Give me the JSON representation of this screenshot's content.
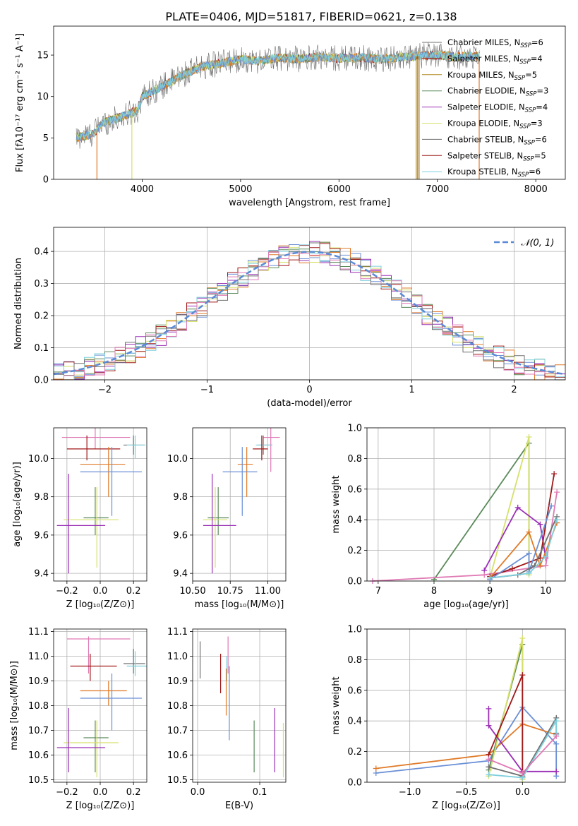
{
  "figure_title": "PLATE=0406, MJD=51817, FIBERID=0621, z=0.138",
  "colors": {
    "Chabrier MILES": "#6a8fd6",
    "Salpeter MILES": "#e07a28",
    "Kroupa MILES": "#b08a20",
    "Chabrier ELODIE": "#5a8a5a",
    "Salpeter ELODIE": "#9a2fb5",
    "Kroupa ELODIE": "#d6e06a",
    "Chabrier STELIB": "#707070",
    "Salpeter STELIB": "#a01818",
    "Kroupa STELIB": "#7ecfdc",
    "pink": "#e07ab5",
    "gaussian": "#5b8ad6"
  },
  "chart_data": [
    {
      "id": "spectrum",
      "type": "line",
      "xlabel": "wavelength [Angstrom, rest frame]",
      "ylabel": "Flux [fλ10⁻¹⁷ erg cm⁻² s⁻¹ A⁻¹]",
      "xlim": [
        3100,
        8300
      ],
      "ylim": [
        0,
        18.5
      ],
      "xticks": [
        "4000",
        "5000",
        "6000",
        "7000",
        "8000"
      ],
      "yticks": [
        "0",
        "5",
        "10",
        "15"
      ],
      "legend_position": "top-right",
      "legend": [
        {
          "base": "Chabrier MILES, N",
          "sub": "SSP",
          "tail": "=6",
          "color_key": "Chabrier STELIB"
        },
        {
          "base": "Salpeter MILES, N",
          "sub": "SSP",
          "tail": "=4",
          "color_key": "Salpeter STELIB"
        },
        {
          "base": "Kroupa MILES, N",
          "sub": "SSP",
          "tail": "=5",
          "color_key": "Kroupa MILES"
        },
        {
          "base": "Chabrier ELODIE, N",
          "sub": "SSP",
          "tail": "=3",
          "color_key": "Chabrier ELODIE"
        },
        {
          "base": "Salpeter ELODIE, N",
          "sub": "SSP",
          "tail": "=4",
          "color_key": "Salpeter ELODIE"
        },
        {
          "base": "Kroupa ELODIE, N",
          "sub": "SSP",
          "tail": "=3",
          "color_key": "Kroupa ELODIE"
        },
        {
          "base": "Chabrier STELIB, N",
          "sub": "SSP",
          "tail": "=6",
          "color_key": "Chabrier STELIB"
        },
        {
          "base": "Salpeter STELIB, N",
          "sub": "SSP",
          "tail": "=5",
          "color_key": "Salpeter STELIB"
        },
        {
          "base": "Kroupa STELIB, N",
          "sub": "SSP",
          "tail": "=6",
          "color_key": "Kroupa STELIB"
        }
      ],
      "continuum": [
        [
          3330,
          5.0
        ],
        [
          3500,
          5.5
        ],
        [
          3600,
          6.8
        ],
        [
          3800,
          7.6
        ],
        [
          3950,
          8.3
        ],
        [
          4000,
          10.0
        ],
        [
          4200,
          11.2
        ],
        [
          4400,
          12.5
        ],
        [
          4600,
          13.6
        ],
        [
          4800,
          14.0
        ],
        [
          5000,
          14.5
        ],
        [
          5200,
          14.3
        ],
        [
          5400,
          14.7
        ],
        [
          5600,
          14.5
        ],
        [
          5800,
          14.8
        ],
        [
          6000,
          14.6
        ],
        [
          6200,
          14.7
        ],
        [
          6400,
          14.5
        ],
        [
          6600,
          14.7
        ],
        [
          6800,
          14.9
        ],
        [
          7000,
          15.0
        ],
        [
          7200,
          14.8
        ],
        [
          7400,
          14.9
        ]
      ],
      "data_extent": [
        3330,
        7430
      ],
      "dips": [
        {
          "x": 3540,
          "to": 0,
          "color_key": "Salpeter MILES"
        },
        {
          "x": 3895,
          "to": 0,
          "color_key": "Kroupa ELODIE"
        },
        {
          "x": 6785,
          "to": 0,
          "color_key": "Kroupa MILES"
        },
        {
          "x": 6800,
          "to": 0,
          "color_key": "Chabrier ELODIE"
        },
        {
          "x": 6815,
          "to": 0,
          "color_key": "Salpeter MILES"
        },
        {
          "x": 7425,
          "to": 0,
          "color_key": "Salpeter MILES"
        }
      ]
    },
    {
      "id": "residuals",
      "type": "histogram",
      "xlabel": "(data-model)/error",
      "ylabel": "Normed distribution",
      "xlim": [
        -2.5,
        2.5
      ],
      "ylim": [
        0,
        0.475
      ],
      "xticks": [
        "−2",
        "−1",
        "0",
        "1",
        "2"
      ],
      "yticks": [
        "0.0",
        "0.1",
        "0.2",
        "0.3",
        "0.4"
      ],
      "legend_position": "top-right",
      "gaussian_label": "𝒩(0, 1)"
    },
    {
      "id": "age_vs_Z",
      "type": "scatter",
      "xlabel": "Z [log₁₀(Z/Z⊙)]",
      "ylabel": "age  [log₁₀(age/yr)]",
      "xlim": [
        -0.28,
        0.28
      ],
      "ylim": [
        9.36,
        10.16
      ],
      "xticks": [
        "−0.2",
        "0.0",
        "0.2"
      ],
      "yticks": [
        "9.4",
        "9.6",
        "9.8",
        "10.0"
      ],
      "points": [
        {
          "c": "pink",
          "x": -0.03,
          "y": 10.11,
          "xl": -0.23,
          "xh": 0.18,
          "yl": 10.05,
          "yh": 10.16
        },
        {
          "c": "Chabrier STELIB",
          "x": 0.2,
          "y": 10.07,
          "xl": 0.14,
          "xh": 0.27,
          "yl": 10.02,
          "yh": 10.12
        },
        {
          "c": "Kroupa STELIB",
          "x": 0.21,
          "y": 10.07,
          "xl": 0.16,
          "xh": 0.27,
          "yl": 10.0,
          "yh": 10.12
        },
        {
          "c": "Salpeter STELIB",
          "x": -0.08,
          "y": 10.05,
          "xl": -0.2,
          "xh": 0.12,
          "yl": 9.99,
          "yh": 10.12
        },
        {
          "c": "Salpeter MILES",
          "x": 0.05,
          "y": 9.97,
          "xl": -0.12,
          "xh": 0.15,
          "yl": 9.8,
          "yh": 10.06
        },
        {
          "c": "Chabrier MILES",
          "x": 0.07,
          "y": 9.93,
          "xl": -0.12,
          "xh": 0.25,
          "yl": 9.7,
          "yh": 10.06
        },
        {
          "c": "Chabrier ELODIE",
          "x": -0.03,
          "y": 9.69,
          "xl": -0.1,
          "xh": 0.05,
          "yl": 9.6,
          "yh": 9.85
        },
        {
          "c": "Kroupa ELODIE",
          "x": -0.02,
          "y": 9.68,
          "xl": -0.22,
          "xh": 0.11,
          "yl": 9.43,
          "yh": 9.85
        },
        {
          "c": "Salpeter ELODIE",
          "x": -0.19,
          "y": 9.65,
          "xl": -0.26,
          "xh": 0.03,
          "yl": 9.4,
          "yh": 9.92
        }
      ]
    },
    {
      "id": "age_vs_mass",
      "type": "scatter",
      "xlabel": "mass [log₁₀(M/M⊙)]",
      "ylabel": "",
      "xlim": [
        10.5,
        11.12
      ],
      "ylim": [
        9.36,
        10.16
      ],
      "xticks": [
        "10.50",
        "10.75",
        "11.00"
      ],
      "yticks": [
        "9.4",
        "9.6",
        "9.8",
        "10.0"
      ],
      "points": [
        {
          "c": "pink",
          "x": 11.02,
          "y": 10.11,
          "xl": 10.97,
          "xh": 11.08,
          "yl": 9.93,
          "yh": 10.16
        },
        {
          "c": "Chabrier STELIB",
          "x": 10.97,
          "y": 10.07,
          "xl": 10.93,
          "xh": 11.03,
          "yl": 10.02,
          "yh": 10.12
        },
        {
          "c": "Kroupa STELIB",
          "x": 10.96,
          "y": 10.07,
          "xl": 10.92,
          "xh": 11.03,
          "yl": 10.0,
          "yh": 10.12
        },
        {
          "c": "Salpeter STELIB",
          "x": 10.96,
          "y": 10.05,
          "xl": 10.9,
          "xh": 11.0,
          "yl": 9.99,
          "yh": 10.12
        },
        {
          "c": "Salpeter MILES",
          "x": 10.86,
          "y": 9.97,
          "xl": 10.8,
          "xh": 10.9,
          "yl": 9.8,
          "yh": 10.06
        },
        {
          "c": "Chabrier MILES",
          "x": 10.83,
          "y": 9.93,
          "xl": 10.7,
          "xh": 10.93,
          "yl": 9.7,
          "yh": 10.06
        },
        {
          "c": "Chabrier ELODIE",
          "x": 10.67,
          "y": 9.69,
          "xl": 10.6,
          "xh": 10.74,
          "yl": 9.6,
          "yh": 9.85
        },
        {
          "c": "Kroupa ELODIE",
          "x": 10.65,
          "y": 9.68,
          "xl": 10.57,
          "xh": 10.73,
          "yl": 9.43,
          "yh": 9.85
        },
        {
          "c": "Salpeter ELODIE",
          "x": 10.63,
          "y": 9.65,
          "xl": 10.57,
          "xh": 10.79,
          "yl": 9.4,
          "yh": 9.92
        }
      ]
    },
    {
      "id": "mass_weight_vs_age",
      "type": "line",
      "xlabel": "age  [log₁₀(age/yr)]",
      "ylabel": "mass weight",
      "xlim": [
        6.8,
        10.35
      ],
      "ylim": [
        0,
        1.0
      ],
      "xticks": [
        "7",
        "8",
        "9",
        "10"
      ],
      "yticks": [
        "0.0",
        "0.2",
        "0.4",
        "0.6",
        "0.8",
        "1.0"
      ],
      "series": [
        {
          "c": "Chabrier ELODIE",
          "points": [
            [
              8.0,
              0.01
            ],
            [
              9.7,
              0.9
            ],
            [
              9.7,
              0.08
            ]
          ]
        },
        {
          "c": "Kroupa ELODIE",
          "points": [
            [
              9.0,
              0.02
            ],
            [
              9.7,
              0.94
            ],
            [
              9.7,
              0.04
            ]
          ]
        },
        {
          "c": "Salpeter ELODIE",
          "points": [
            [
              8.9,
              0.07
            ],
            [
              9.5,
              0.48
            ],
            [
              9.9,
              0.37
            ],
            [
              10.0,
              0.15
            ]
          ]
        },
        {
          "c": "pink",
          "points": [
            [
              6.9,
              0.0
            ],
            [
              8.9,
              0.04
            ],
            [
              10.0,
              0.1
            ],
            [
              10.2,
              0.58
            ]
          ]
        },
        {
          "c": "Salpeter STELIB",
          "points": [
            [
              9.0,
              0.03
            ],
            [
              9.4,
              0.08
            ],
            [
              9.9,
              0.15
            ],
            [
              10.15,
              0.7
            ]
          ]
        },
        {
          "c": "Salpeter MILES",
          "points": [
            [
              9.0,
              0.02
            ],
            [
              9.7,
              0.32
            ],
            [
              9.9,
              0.1
            ],
            [
              10.2,
              0.38
            ]
          ]
        },
        {
          "c": "Chabrier MILES",
          "points": [
            [
              9.0,
              0.01
            ],
            [
              9.7,
              0.18
            ],
            [
              9.7,
              0.06
            ],
            [
              10.1,
              0.49
            ]
          ]
        },
        {
          "c": "Chabrier STELIB",
          "points": [
            [
              9.0,
              0.02
            ],
            [
              9.5,
              0.04
            ],
            [
              9.8,
              0.1
            ],
            [
              10.2,
              0.42
            ]
          ]
        },
        {
          "c": "Kroupa STELIB",
          "points": [
            [
              9.0,
              0.02
            ],
            [
              9.7,
              0.05
            ],
            [
              10.0,
              0.16
            ],
            [
              10.2,
              0.4
            ]
          ]
        }
      ]
    },
    {
      "id": "mass_vs_Z",
      "type": "scatter",
      "xlabel": "Z [log₁₀(Z/Z⊙)]",
      "ylabel": "mass [log₁₀(M/M⊙)]",
      "xlim": [
        -0.28,
        0.28
      ],
      "ylim": [
        10.49,
        11.11
      ],
      "xticks": [
        "−0.2",
        "0.0",
        "0.2"
      ],
      "yticks": [
        "10.5",
        "10.6",
        "10.7",
        "10.8",
        "10.9",
        "11.0",
        "11.1"
      ],
      "points": [
        {
          "c": "pink",
          "x": -0.07,
          "y": 11.07,
          "xl": -0.2,
          "xh": 0.18,
          "yl": 10.93,
          "yh": 11.08
        },
        {
          "c": "Chabrier STELIB",
          "x": 0.2,
          "y": 10.97,
          "xl": 0.14,
          "xh": 0.27,
          "yl": 10.93,
          "yh": 11.03
        },
        {
          "c": "Kroupa STELIB",
          "x": 0.21,
          "y": 10.96,
          "xl": 0.16,
          "xh": 0.28,
          "yl": 10.92,
          "yh": 11.02
        },
        {
          "c": "Salpeter STELIB",
          "x": -0.06,
          "y": 10.96,
          "xl": -0.18,
          "xh": 0.1,
          "yl": 10.9,
          "yh": 11.01
        },
        {
          "c": "Salpeter MILES",
          "x": 0.05,
          "y": 10.86,
          "xl": -0.12,
          "xh": 0.16,
          "yl": 10.8,
          "yh": 10.9
        },
        {
          "c": "Chabrier MILES",
          "x": 0.07,
          "y": 10.83,
          "xl": -0.12,
          "xh": 0.25,
          "yl": 10.7,
          "yh": 10.93
        },
        {
          "c": "Chabrier ELODIE",
          "x": -0.03,
          "y": 10.67,
          "xl": -0.1,
          "xh": 0.05,
          "yl": 10.53,
          "yh": 10.74
        },
        {
          "c": "Kroupa ELODIE",
          "x": -0.02,
          "y": 10.65,
          "xl": -0.22,
          "xh": 0.11,
          "yl": 10.51,
          "yh": 10.74
        },
        {
          "c": "Salpeter ELODIE",
          "x": -0.19,
          "y": 10.63,
          "xl": -0.26,
          "xh": 0.03,
          "yl": 10.53,
          "yh": 10.79
        }
      ]
    },
    {
      "id": "mass_vs_EBV",
      "type": "scatter",
      "xlabel": "E(B-V)",
      "ylabel": "",
      "xlim": [
        -0.008,
        0.142
      ],
      "ylim": [
        10.49,
        11.11
      ],
      "xticks": [
        "0.0",
        "0.1"
      ],
      "yticks": [
        "10.5",
        "10.6",
        "10.7",
        "10.8",
        "10.9",
        "11.0",
        "11.1"
      ],
      "points": [
        {
          "c": "Chabrier STELIB",
          "x": 0.004,
          "y": 10.99,
          "yl": 10.91,
          "yh": 11.06
        },
        {
          "c": "pink",
          "x": 0.049,
          "y": 11.0,
          "yl": 10.93,
          "yh": 11.08
        },
        {
          "c": "Kroupa STELIB",
          "x": 0.047,
          "y": 10.95,
          "yl": 10.9,
          "yh": 11.0
        },
        {
          "c": "Salpeter STELIB",
          "x": 0.037,
          "y": 10.95,
          "yl": 10.85,
          "yh": 11.01
        },
        {
          "c": "Salpeter MILES",
          "x": 0.046,
          "y": 10.86,
          "yl": 10.76,
          "yh": 10.95
        },
        {
          "c": "Chabrier MILES",
          "x": 0.051,
          "y": 10.83,
          "yl": 10.66,
          "yh": 10.96
        },
        {
          "c": "Chabrier ELODIE",
          "x": 0.091,
          "y": 10.65,
          "yl": 10.53,
          "yh": 10.74
        },
        {
          "c": "Salpeter ELODIE",
          "x": 0.124,
          "y": 10.63,
          "yl": 10.53,
          "yh": 10.79
        },
        {
          "c": "Kroupa ELODIE",
          "x": 0.138,
          "y": 10.6,
          "yl": 10.51,
          "yh": 10.73
        }
      ]
    },
    {
      "id": "mass_weight_vs_Z",
      "type": "line",
      "xlabel": "Z [log₁₀(Z/Z⊙)]",
      "ylabel": "mass weight",
      "xlim": [
        -1.38,
        0.38
      ],
      "ylim": [
        0,
        1.0
      ],
      "xticks": [
        "−1.0",
        "−0.5",
        "0.0"
      ],
      "yticks": [
        "0.0",
        "0.2",
        "0.4",
        "0.6",
        "0.8",
        "1.0"
      ],
      "series": [
        {
          "c": "Chabrier MILES",
          "points": [
            [
              -1.3,
              0.06
            ],
            [
              -0.3,
              0.14
            ],
            [
              0.0,
              0.49
            ],
            [
              0.3,
              0.25
            ],
            [
              0.3,
              0.04
            ]
          ]
        },
        {
          "c": "Salpeter MILES",
          "points": [
            [
              -1.3,
              0.09
            ],
            [
              -0.3,
              0.18
            ],
            [
              0.0,
              0.38
            ],
            [
              0.3,
              0.31
            ]
          ]
        },
        {
          "c": "Chabrier ELODIE",
          "points": [
            [
              -0.3,
              0.08
            ],
            [
              0.0,
              0.9
            ],
            [
              0.0,
              0.02
            ]
          ]
        },
        {
          "c": "Kroupa ELODIE",
          "points": [
            [
              -0.3,
              0.04
            ],
            [
              0.0,
              0.94
            ],
            [
              0.0,
              0.02
            ]
          ]
        },
        {
          "c": "Salpeter ELODIE",
          "points": [
            [
              -0.3,
              0.48
            ],
            [
              -0.3,
              0.37
            ],
            [
              0.0,
              0.07
            ],
            [
              0.3,
              0.07
            ]
          ]
        },
        {
          "c": "Salpeter STELIB",
          "points": [
            [
              -0.3,
              0.18
            ],
            [
              0.0,
              0.7
            ],
            [
              0.0,
              0.03
            ]
          ]
        },
        {
          "c": "Chabrier STELIB",
          "points": [
            [
              -0.3,
              0.1
            ],
            [
              0.0,
              0.04
            ],
            [
              0.3,
              0.42
            ],
            [
              0.3,
              0.32
            ]
          ]
        },
        {
          "c": "Kroupa STELIB",
          "points": [
            [
              -0.3,
              0.05
            ],
            [
              0.0,
              0.03
            ],
            [
              0.3,
              0.4
            ],
            [
              0.3,
              0.31
            ]
          ]
        },
        {
          "c": "pink",
          "points": [
            [
              -0.3,
              0.15
            ],
            [
              0.0,
              0.06
            ],
            [
              0.3,
              0.3
            ]
          ]
        }
      ]
    }
  ]
}
